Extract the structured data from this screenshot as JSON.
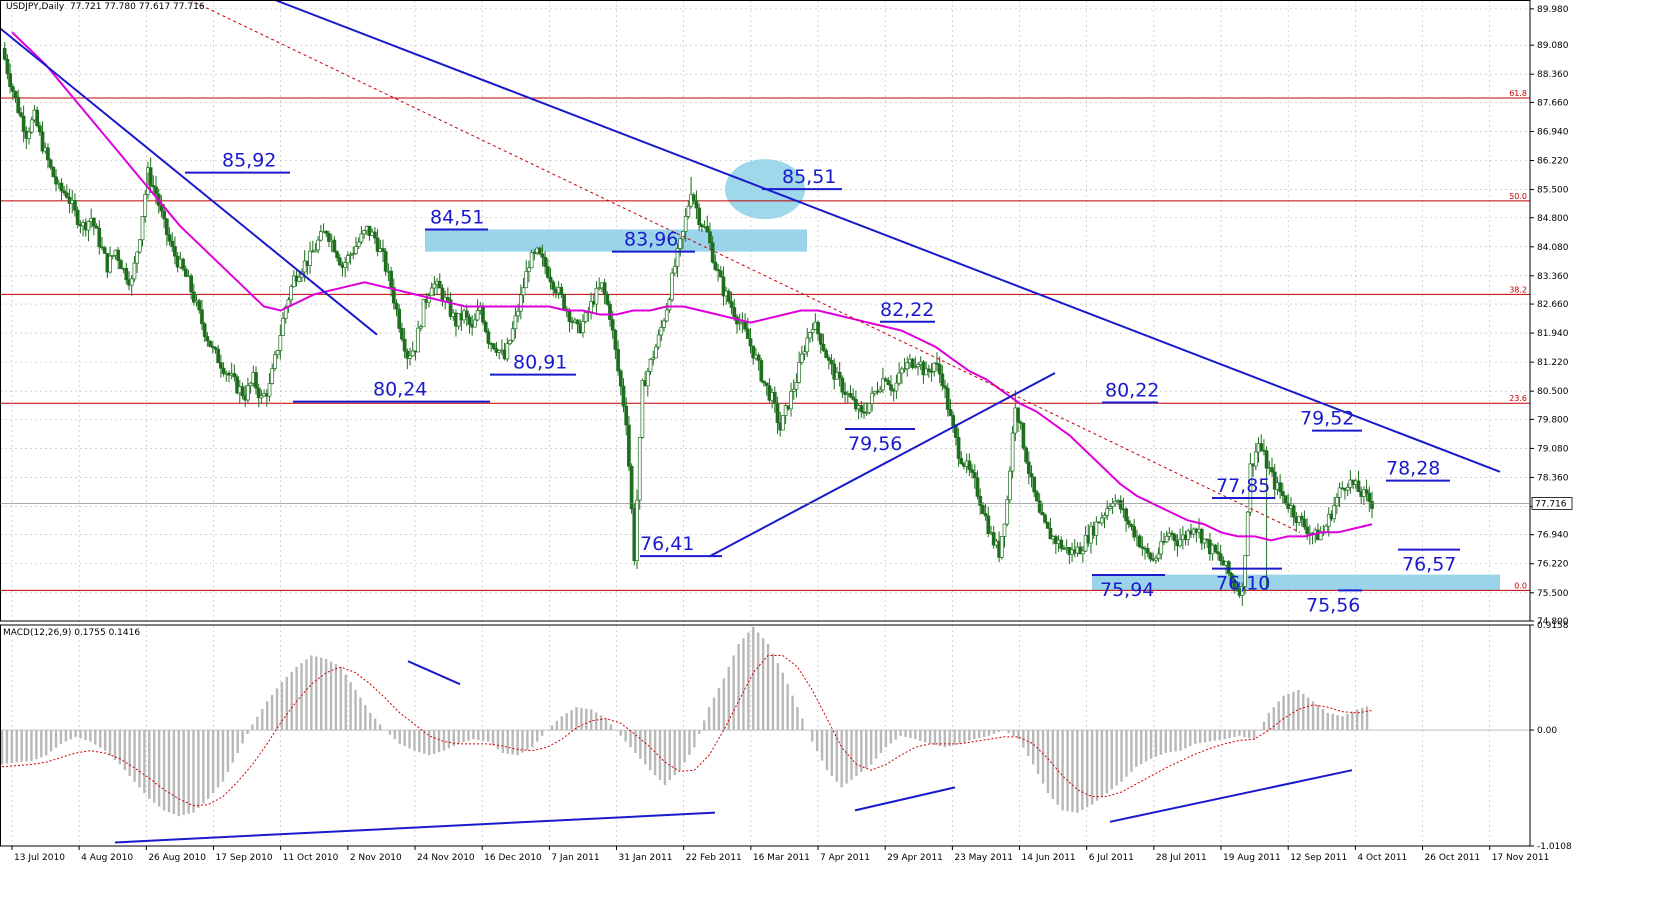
{
  "chart_data": {
    "type": "candlestick",
    "header": {
      "symbol_label": "USDJPY,Daily",
      "ohlc_text": "77.721 77.780 77.617 77.716"
    },
    "colors": {
      "grid": "#b8b8b8",
      "candle": "#1e6e1e",
      "ma": "#dd00dd",
      "trendline": "#1a1acc",
      "fib": "#c00000",
      "zone": "#87cde6",
      "macd_hist": "#b8b8b8",
      "signal": "#d00000"
    },
    "price_axis": {
      "min": 74.8,
      "max": 90.2,
      "ticks": [
        "89.980",
        "89.080",
        "88.360",
        "87.660",
        "86.940",
        "86.220",
        "85.500",
        "84.800",
        "84.080",
        "83.360",
        "82.660",
        "81.940",
        "81.220",
        "80.500",
        "79.800",
        "79.080",
        "78.360",
        "77.640",
        "76.940",
        "76.220",
        "75.500",
        "74.800"
      ],
      "current_price_label": "77.716",
      "current_price": 77.716
    },
    "macd_axis": {
      "label": "MACD(12,26,9) 0.1755 0.1416",
      "min": -1.0108,
      "max": 0.9158,
      "ticks": [
        "0.9158",
        "0.00",
        "-1.0108"
      ]
    },
    "x_labels": [
      "13 Jul 2010",
      "4 Aug 2010",
      "26 Aug 2010",
      "17 Sep 2010",
      "11 Oct 2010",
      "2 Nov 2010",
      "24 Nov 2010",
      "16 Dec 2010",
      "7 Jan 2011",
      "31 Jan 2011",
      "22 Feb 2011",
      "16 Mar 2011",
      "7 Apr 2011",
      "29 Apr 2011",
      "23 May 2011",
      "14 Jun 2011",
      "6 Jul 2011",
      "28 Jul 2011",
      "19 Aug 2011",
      "12 Sep 2011",
      "4 Oct 2011",
      "26 Oct 2011",
      "17 Nov 2011"
    ],
    "fib_levels": [
      {
        "label": "61.8",
        "price": 87.77
      },
      {
        "label": "50.0",
        "price": 85.22
      },
      {
        "label": "38.2",
        "price": 82.9
      },
      {
        "label": "23.6",
        "price": 80.2
      },
      {
        "label": "0.0",
        "price": 75.56
      }
    ],
    "annotations": [
      {
        "text": "85,92",
        "price": 85.92,
        "label_side": "above"
      },
      {
        "text": "84,51",
        "price": 84.51,
        "label_side": "above"
      },
      {
        "text": "83,96",
        "price": 83.96,
        "label_side": "above"
      },
      {
        "text": "85,51",
        "price": 85.51,
        "label_side": "above"
      },
      {
        "text": "80,91",
        "price": 80.91,
        "label_side": "above"
      },
      {
        "text": "80,24",
        "price": 80.24,
        "label_side": "above"
      },
      {
        "text": "82,22",
        "price": 82.22,
        "label_side": "above"
      },
      {
        "text": "79,56",
        "price": 79.56,
        "label_side": "below"
      },
      {
        "text": "76,41",
        "price": 76.41,
        "label_side": "above"
      },
      {
        "text": "80,22",
        "price": 80.22,
        "label_side": "above"
      },
      {
        "text": "77,85",
        "price": 77.85,
        "label_side": "above"
      },
      {
        "text": "75,94",
        "price": 75.94,
        "label_side": "below"
      },
      {
        "text": "76,10",
        "price": 76.1,
        "label_side": "below"
      },
      {
        "text": "75,56",
        "price": 75.56,
        "label_side": "below"
      },
      {
        "text": "79,52",
        "price": 79.52,
        "label_side": "above"
      },
      {
        "text": "78,28",
        "price": 78.28,
        "label_side": "above"
      },
      {
        "text": "76,57",
        "price": 76.57,
        "label_side": "below"
      }
    ],
    "price_path": [
      89.0,
      88.2,
      87.5,
      86.9,
      87.3,
      86.6,
      86.0,
      85.5,
      85.4,
      84.9,
      84.6,
      84.8,
      84.2,
      83.6,
      84.0,
      83.5,
      83.2,
      84.4,
      85.9,
      85.4,
      84.6,
      84.0,
      83.6,
      83.2,
      82.6,
      82.0,
      81.5,
      81.2,
      80.9,
      80.6,
      80.4,
      80.8,
      80.3,
      80.6,
      81.6,
      82.6,
      83.3,
      83.6,
      83.8,
      84.2,
      84.5,
      84.1,
      83.6,
      83.9,
      84.2,
      84.5,
      84.3,
      83.8,
      83.1,
      82.2,
      81.4,
      81.6,
      82.6,
      83.2,
      83.0,
      82.6,
      82.2,
      82.4,
      82.0,
      82.6,
      81.8,
      81.6,
      81.3,
      82.0,
      82.8,
      83.7,
      83.9,
      83.6,
      83.2,
      82.8,
      82.4,
      82.0,
      82.3,
      82.8,
      83.1,
      82.4,
      81.0,
      79.8,
      76.41,
      80.6,
      81.2,
      81.8,
      82.6,
      83.6,
      84.4,
      85.51,
      84.8,
      84.4,
      83.6,
      83.0,
      82.6,
      82.2,
      81.8,
      81.3,
      80.7,
      80.3,
      79.56,
      80.2,
      80.8,
      81.6,
      82.2,
      81.8,
      81.2,
      80.8,
      80.5,
      80.2,
      79.9,
      80.2,
      80.6,
      80.9,
      80.5,
      81.0,
      81.2,
      81.3,
      80.9,
      81.2,
      80.8,
      79.8,
      79.0,
      78.6,
      78.2,
      77.6,
      76.9,
      76.5,
      77.8,
      80.22,
      79.2,
      78.2,
      77.4,
      77.0,
      76.8,
      76.6,
      76.5,
      76.6,
      76.9,
      77.2,
      77.5,
      77.85,
      77.6,
      77.2,
      76.9,
      76.5,
      76.3,
      76.6,
      77.0,
      76.8,
      76.9,
      77.2,
      76.9,
      76.6,
      76.4,
      76.1,
      75.7,
      75.56,
      78.6,
      79.2,
      78.7,
      78.2,
      77.9,
      77.6,
      77.3,
      77.1,
      76.9,
      77.0,
      77.5,
      78.0,
      78.28,
      78.1,
      77.9,
      77.72
    ],
    "ma_path": [
      89.4,
      89.0,
      88.6,
      88.1,
      87.6,
      87.1,
      86.6,
      86.1,
      85.6,
      85.1,
      84.6,
      84.2,
      83.8,
      83.4,
      83.0,
      82.6,
      82.5,
      82.7,
      82.9,
      83.0,
      83.1,
      83.2,
      83.1,
      83.0,
      82.9,
      82.8,
      82.7,
      82.6,
      82.6,
      82.6,
      82.6,
      82.6,
      82.6,
      82.5,
      82.5,
      82.4,
      82.4,
      82.5,
      82.5,
      82.6,
      82.6,
      82.5,
      82.4,
      82.3,
      82.2,
      82.3,
      82.4,
      82.5,
      82.5,
      82.4,
      82.3,
      82.2,
      82.1,
      82.0,
      81.8,
      81.6,
      81.3,
      81.0,
      80.8,
      80.5,
      80.2,
      80.0,
      79.7,
      79.4,
      79.0,
      78.6,
      78.2,
      77.9,
      77.7,
      77.5,
      77.3,
      77.2,
      77.0,
      76.9,
      76.9,
      76.8,
      76.9,
      76.9,
      77.0,
      77.0,
      77.1,
      77.2
    ],
    "macd_hist": [
      -0.3,
      -0.28,
      -0.27,
      -0.22,
      -0.12,
      -0.06,
      -0.1,
      -0.18,
      -0.3,
      -0.45,
      -0.6,
      -0.7,
      -0.75,
      -0.72,
      -0.6,
      -0.45,
      -0.2,
      0.05,
      0.25,
      0.42,
      0.55,
      0.65,
      0.62,
      0.55,
      0.35,
      0.15,
      0.0,
      -0.12,
      -0.18,
      -0.22,
      -0.18,
      -0.12,
      -0.08,
      -0.1,
      -0.2,
      -0.22,
      -0.15,
      0.0,
      0.12,
      0.2,
      0.18,
      0.1,
      -0.05,
      -0.2,
      -0.35,
      -0.48,
      -0.35,
      -0.15,
      0.2,
      0.45,
      0.75,
      0.9,
      0.75,
      0.5,
      0.2,
      -0.1,
      -0.35,
      -0.5,
      -0.4,
      -0.3,
      -0.15,
      -0.05,
      -0.08,
      -0.12,
      -0.15,
      -0.12,
      -0.08,
      -0.05,
      0.0,
      -0.08,
      -0.3,
      -0.55,
      -0.7,
      -0.72,
      -0.65,
      -0.55,
      -0.45,
      -0.32,
      -0.25,
      -0.2,
      -0.18,
      -0.12,
      -0.1,
      -0.08,
      -0.05,
      -0.08,
      0.15,
      0.3,
      0.35,
      0.25,
      0.15,
      0.12,
      0.18,
      0.22
    ],
    "macd_signal": [
      -0.32,
      -0.31,
      -0.3,
      -0.28,
      -0.24,
      -0.2,
      -0.18,
      -0.2,
      -0.25,
      -0.33,
      -0.42,
      -0.52,
      -0.6,
      -0.66,
      -0.65,
      -0.58,
      -0.45,
      -0.3,
      -0.12,
      0.08,
      0.25,
      0.4,
      0.5,
      0.55,
      0.5,
      0.4,
      0.28,
      0.15,
      0.05,
      -0.05,
      -0.1,
      -0.12,
      -0.12,
      -0.12,
      -0.14,
      -0.17,
      -0.18,
      -0.15,
      -0.08,
      0.02,
      0.08,
      0.1,
      0.06,
      -0.04,
      -0.15,
      -0.28,
      -0.36,
      -0.35,
      -0.22,
      0.0,
      0.25,
      0.5,
      0.65,
      0.65,
      0.55,
      0.35,
      0.1,
      -0.15,
      -0.3,
      -0.35,
      -0.3,
      -0.22,
      -0.15,
      -0.12,
      -0.12,
      -0.12,
      -0.1,
      -0.08,
      -0.06,
      -0.06,
      -0.12,
      -0.25,
      -0.4,
      -0.52,
      -0.58,
      -0.58,
      -0.54,
      -0.47,
      -0.4,
      -0.33,
      -0.27,
      -0.21,
      -0.16,
      -0.12,
      -0.09,
      -0.08,
      0.0,
      0.1,
      0.18,
      0.22,
      0.2,
      0.16,
      0.15,
      0.17
    ]
  }
}
